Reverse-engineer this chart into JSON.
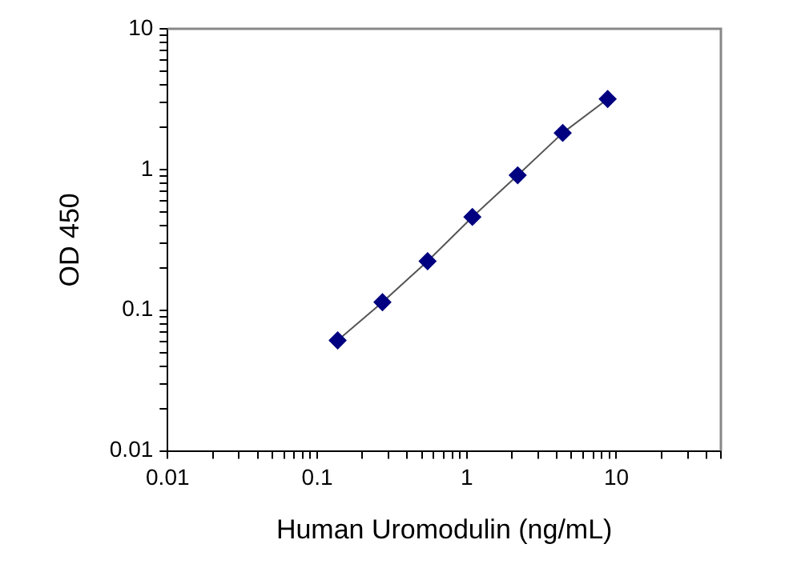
{
  "chart_data": {
    "type": "line",
    "xlabel": "Human Uromodulin (ng/mL)",
    "ylabel": "OD 450",
    "x": [
      0.137,
      0.273,
      0.547,
      1.09,
      2.19,
      4.38,
      8.75
    ],
    "series": [
      {
        "color": "#000080",
        "values": [
          0.061,
          0.114,
          0.223,
          0.46,
          0.91,
          1.82,
          3.17
        ]
      }
    ],
    "log": "xy",
    "xlim": [
      0.01,
      50
    ],
    "ylim": [
      0.01,
      10
    ],
    "xticks": [
      0.01,
      {
        "value": 0.02,
        "label": null
      },
      {
        "value": 0.03,
        "label": null
      },
      {
        "value": 0.04,
        "label": null
      },
      {
        "value": 0.05,
        "label": null
      },
      {
        "value": 0.06,
        "label": null
      },
      {
        "value": 0.07,
        "label": null
      },
      {
        "value": 0.08,
        "label": null
      },
      {
        "value": 0.09,
        "label": null
      },
      0.1,
      {
        "value": 0.2,
        "label": null
      },
      {
        "value": 0.3,
        "label": null
      },
      {
        "value": 0.4,
        "label": null
      },
      {
        "value": 0.5,
        "label": null
      },
      {
        "value": 0.6,
        "label": null
      },
      {
        "value": 0.7,
        "label": null
      },
      {
        "value": 0.8,
        "label": null
      },
      {
        "value": 0.9,
        "label": null
      },
      1,
      {
        "value": 2,
        "label": null
      },
      {
        "value": 3,
        "label": null
      },
      {
        "value": 4,
        "label": null
      },
      {
        "value": 5,
        "label": null
      },
      {
        "value": 6,
        "label": null
      },
      {
        "value": 7,
        "label": null
      },
      {
        "value": 8,
        "label": null
      },
      {
        "value": 9,
        "label": null
      },
      10,
      {
        "value": 20,
        "label": null
      },
      {
        "value": 30,
        "label": null
      },
      {
        "value": 40,
        "label": null
      },
      {
        "value": 50,
        "label": null
      }
    ],
    "yticks": [
      0.01,
      {
        "value": 0.02,
        "label": null
      },
      {
        "value": 0.03,
        "label": null
      },
      {
        "value": 0.04,
        "label": null
      },
      {
        "value": 0.05,
        "label": null
      },
      {
        "value": 0.06,
        "label": null
      },
      {
        "value": 0.07,
        "label": null
      },
      {
        "value": 0.08,
        "label": null
      },
      {
        "value": 0.09,
        "label": null
      },
      0.1,
      {
        "value": 0.2,
        "label": null
      },
      {
        "value": 0.3,
        "label": null
      },
      {
        "value": 0.4,
        "label": null
      },
      {
        "value": 0.5,
        "label": null
      },
      {
        "value": 0.6,
        "label": null
      },
      {
        "value": 0.7,
        "label": null
      },
      {
        "value": 0.8,
        "label": null
      },
      {
        "value": 0.9,
        "label": null
      },
      1,
      {
        "value": 2,
        "label": null
      },
      {
        "value": 3,
        "label": null
      },
      {
        "value": 4,
        "label": null
      },
      {
        "value": 5,
        "label": null
      },
      {
        "value": 6,
        "label": null
      },
      {
        "value": 7,
        "label": null
      },
      {
        "value": 8,
        "label": null
      },
      {
        "value": 9,
        "label": null
      },
      10
    ],
    "grid": false,
    "legend": false,
    "marker": "diamond",
    "line_style": "solid"
  }
}
